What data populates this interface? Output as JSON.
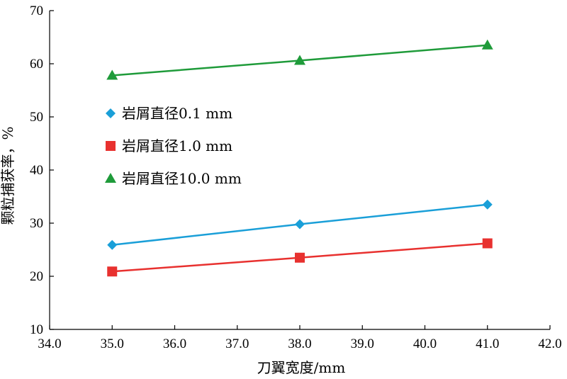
{
  "chart_data": {
    "type": "line",
    "title": "",
    "xlabel": "刀翼宽度/mm",
    "ylabel": "颗粒捕获率，%",
    "xlim": [
      34.0,
      42.0
    ],
    "ylim": [
      10,
      70
    ],
    "xticks": [
      "34.0",
      "35.0",
      "36.0",
      "37.0",
      "38.0",
      "39.0",
      "40.0",
      "41.0",
      "42.0"
    ],
    "yticks": [
      "10",
      "20",
      "30",
      "40",
      "50",
      "60",
      "70"
    ],
    "grid": false,
    "legend_position": "center-left",
    "series": [
      {
        "name": "岩屑直径0.1 mm",
        "color": "#1a9fd8",
        "marker": "diamond",
        "x": [
          35.0,
          38.0,
          41.0
        ],
        "y": [
          25.9,
          29.8,
          33.5
        ]
      },
      {
        "name": "岩屑直径1.0 mm",
        "color": "#e8312f",
        "marker": "square",
        "x": [
          35.0,
          38.0,
          41.0
        ],
        "y": [
          20.9,
          23.5,
          26.2
        ]
      },
      {
        "name": "岩屑直径10.0 mm",
        "color": "#1f9b3a",
        "marker": "triangle",
        "x": [
          35.0,
          38.0,
          41.0
        ],
        "y": [
          57.8,
          60.6,
          63.5
        ]
      }
    ]
  }
}
